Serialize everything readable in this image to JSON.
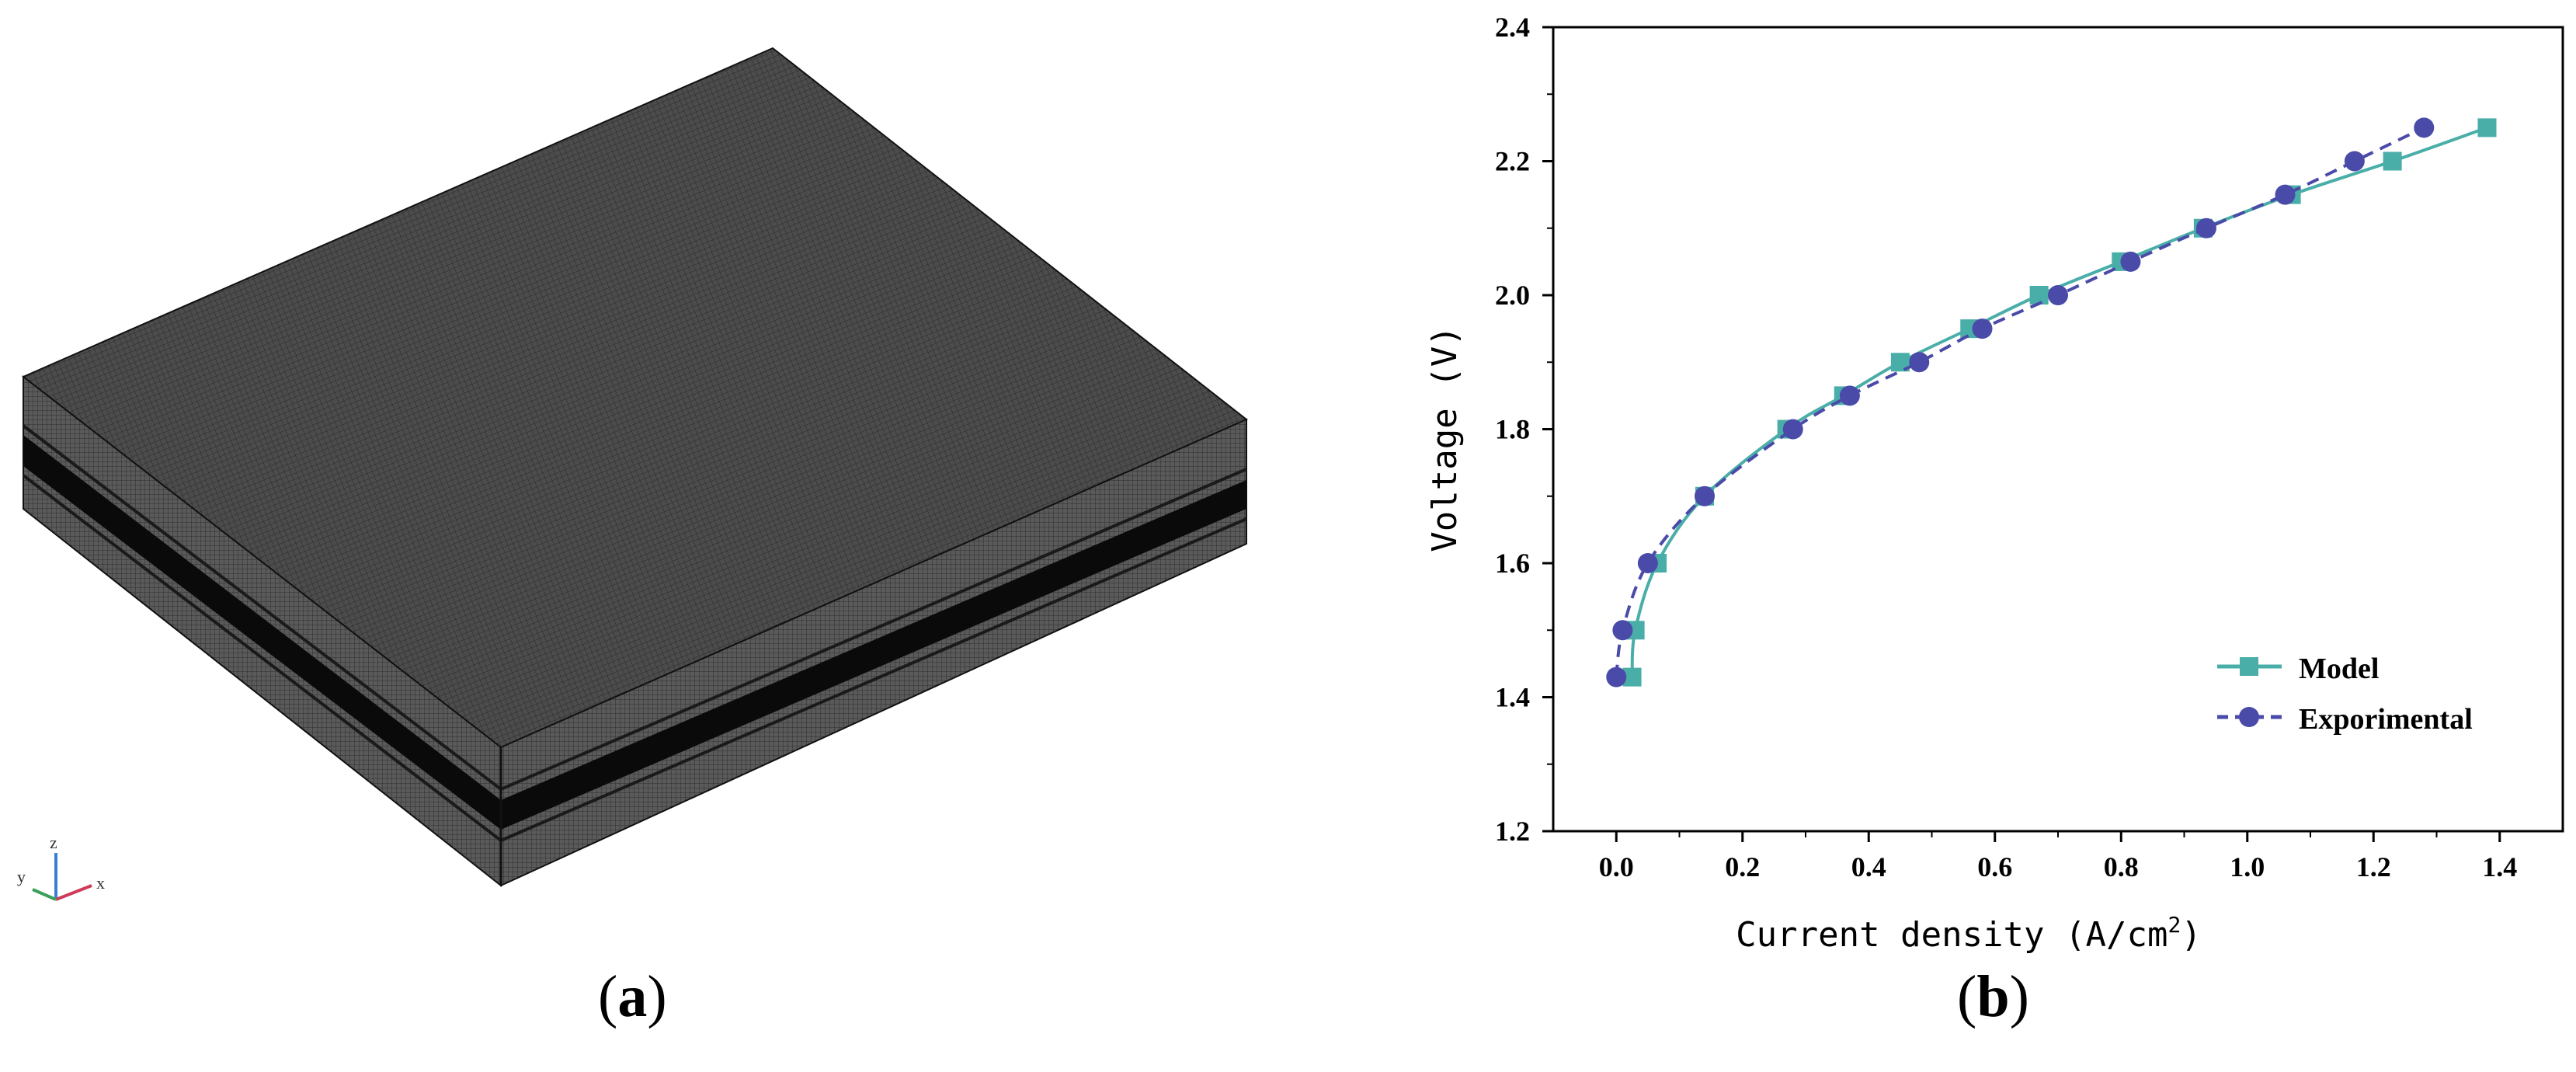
{
  "panels": {
    "a": {
      "label_open": "(",
      "label_letter": "a",
      "label_close": ")"
    },
    "b": {
      "label_open": "(",
      "label_letter": "b",
      "label_close": ")"
    }
  },
  "axes_triad": {
    "z": "z",
    "y": "y",
    "x": "x"
  },
  "chart_data": {
    "type": "line",
    "title": "",
    "xlabel_main": "Current density (A/cm",
    "xlabel_sup": "2",
    "xlabel_end": ")",
    "ylabel": "Voltage (V)",
    "xlim": [
      -0.1,
      1.5
    ],
    "ylim": [
      1.2,
      2.4
    ],
    "xticks": [
      0.0,
      0.2,
      0.4,
      0.6,
      0.8,
      1.0,
      1.2,
      1.4
    ],
    "xtick_labels": [
      "0.0",
      "0.2",
      "0.4",
      "0.6",
      "0.8",
      "1.0",
      "1.2",
      "1.4"
    ],
    "yticks": [
      1.2,
      1.4,
      1.6,
      1.8,
      2.0,
      2.2,
      2.4
    ],
    "ytick_labels": [
      "1.2",
      "1.4",
      "1.6",
      "1.8",
      "2.0",
      "2.2",
      "2.4"
    ],
    "grid": false,
    "legend_position": "bottom-right",
    "series": [
      {
        "name": "Model",
        "marker": "square",
        "line": "solid",
        "color": "#4aaea8",
        "x": [
          0.025,
          0.03,
          0.065,
          0.14,
          0.27,
          0.36,
          0.45,
          0.56,
          0.67,
          0.8,
          0.93,
          1.07,
          1.23,
          1.38
        ],
        "y": [
          1.43,
          1.5,
          1.6,
          1.7,
          1.8,
          1.85,
          1.9,
          1.95,
          2.0,
          2.05,
          2.1,
          2.15,
          2.2,
          2.25
        ]
      },
      {
        "name": "Exporimental",
        "marker": "circle",
        "line": "dashed",
        "color": "#4a4aa8",
        "x": [
          0.0,
          0.01,
          0.05,
          0.14,
          0.28,
          0.37,
          0.48,
          0.58,
          0.7,
          0.815,
          0.935,
          1.06,
          1.17,
          1.28
        ],
        "y": [
          1.43,
          1.5,
          1.6,
          1.7,
          1.8,
          1.85,
          1.9,
          1.95,
          2.0,
          2.05,
          2.1,
          2.15,
          2.2,
          2.25
        ]
      }
    ]
  }
}
